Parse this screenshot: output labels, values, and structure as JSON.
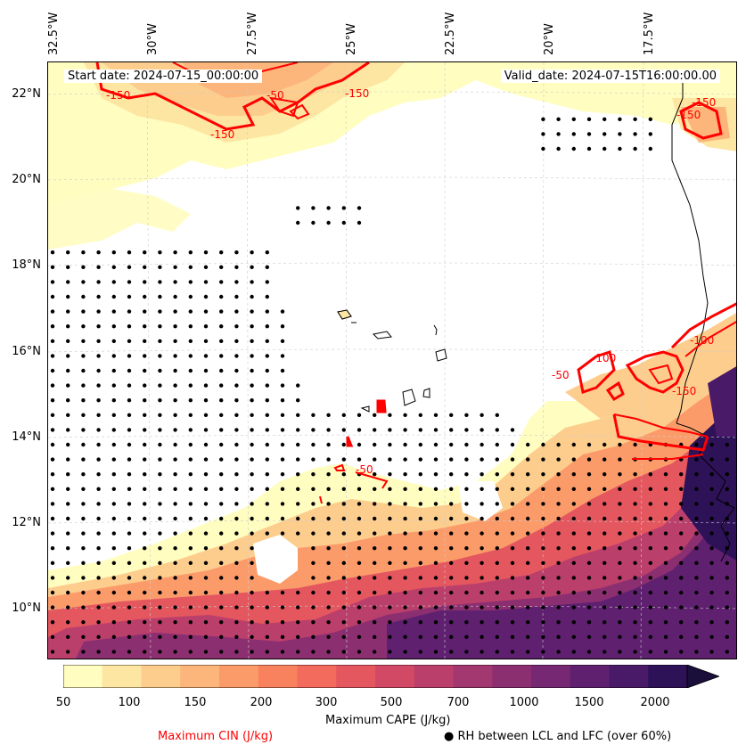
{
  "header": {
    "start_date": "Start date: 2024-07-15_00:00:00",
    "valid_date": "Valid_date: 2024-07-15T16:00:00.00"
  },
  "longitude_labels": [
    "32.5°W",
    "30°W",
    "27.5°W",
    "25°W",
    "22.5°W",
    "20°W",
    "17.5°W"
  ],
  "latitude_labels": [
    "22°N",
    "20°N",
    "18°N",
    "16°N",
    "14°N",
    "12°N",
    "10°N"
  ],
  "cin_contour_labels": [
    "-150",
    "-150",
    "-50",
    "-100",
    "-150",
    "-150",
    "-50",
    "-100",
    "-150",
    "-50",
    "-150"
  ],
  "colorbar": {
    "label": "Maximum CAPE (J/kg)",
    "ticks": [
      "50",
      "100",
      "150",
      "200",
      "300",
      "500",
      "700",
      "1000",
      "1500",
      "2000"
    ],
    "colors": [
      "#fffdbf",
      "#fde5a2",
      "#fdcd8e",
      "#fcb57a",
      "#fc9b6a",
      "#f9825e",
      "#f26b5c",
      "#e4575f",
      "#d14965",
      "#bb3f6b",
      "#a3376f",
      "#8c2f71",
      "#762873",
      "#5f2070",
      "#481a68",
      "#2e1258",
      "#1a0e3a"
    ]
  },
  "legend": {
    "cin_label": "Maximum CIN (J/kg)",
    "rh_label": "RH between LCL and LFC (over 60%)",
    "rh_marker": "●",
    "cin_color": "#ff0000"
  }
}
